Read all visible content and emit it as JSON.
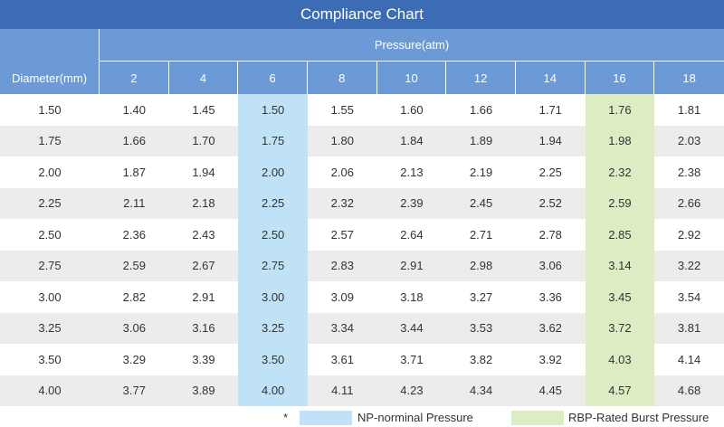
{
  "title": "Compliance Chart",
  "pressure_header": "Pressure(atm)",
  "diameter_header": "Diameter(mm)",
  "pressures": [
    "2",
    "4",
    "6",
    "8",
    "10",
    "12",
    "14",
    "16",
    "18"
  ],
  "highlight": {
    "np_col": 2,
    "rbp_col": 7
  },
  "colors": {
    "title_bg": "#3c6cb4",
    "header_bg": "#6b9ad6",
    "np": "#bfe2f7",
    "rbp": "#dcedc4",
    "stripe": "#ececec"
  },
  "rows": [
    {
      "diameter": "1.50",
      "values": [
        "1.40",
        "1.45",
        "1.50",
        "1.55",
        "1.60",
        "1.66",
        "1.71",
        "1.76",
        "1.81"
      ]
    },
    {
      "diameter": "1.75",
      "values": [
        "1.66",
        "1.70",
        "1.75",
        "1.80",
        "1.84",
        "1.89",
        "1.94",
        "1.98",
        "2.03"
      ]
    },
    {
      "diameter": "2.00",
      "values": [
        "1.87",
        "1.94",
        "2.00",
        "2.06",
        "2.13",
        "2.19",
        "2.25",
        "2.32",
        "2.38"
      ]
    },
    {
      "diameter": "2.25",
      "values": [
        "2.11",
        "2.18",
        "2.25",
        "2.32",
        "2.39",
        "2.45",
        "2.52",
        "2.59",
        "2.66"
      ]
    },
    {
      "diameter": "2.50",
      "values": [
        "2.36",
        "2.43",
        "2.50",
        "2.57",
        "2.64",
        "2.71",
        "2.78",
        "2.85",
        "2.92"
      ]
    },
    {
      "diameter": "2.75",
      "values": [
        "2.59",
        "2.67",
        "2.75",
        "2.83",
        "2.91",
        "2.98",
        "3.06",
        "3.14",
        "3.22"
      ]
    },
    {
      "diameter": "3.00",
      "values": [
        "2.82",
        "2.91",
        "3.00",
        "3.09",
        "3.18",
        "3.27",
        "3.36",
        "3.45",
        "3.54"
      ]
    },
    {
      "diameter": "3.25",
      "values": [
        "3.06",
        "3.16",
        "3.25",
        "3.34",
        "3.44",
        "3.53",
        "3.62",
        "3.72",
        "3.81"
      ]
    },
    {
      "diameter": "3.50",
      "values": [
        "3.29",
        "3.39",
        "3.50",
        "3.61",
        "3.71",
        "3.82",
        "3.92",
        "4.03",
        "4.14"
      ]
    },
    {
      "diameter": "4.00",
      "values": [
        "3.77",
        "3.89",
        "4.00",
        "4.11",
        "4.23",
        "4.34",
        "4.45",
        "4.57",
        "4.68"
      ]
    }
  ],
  "legend": {
    "star": "*",
    "np_label": "NP-norminal Pressure",
    "rbp_label": "RBP-Rated Burst Pressure"
  }
}
